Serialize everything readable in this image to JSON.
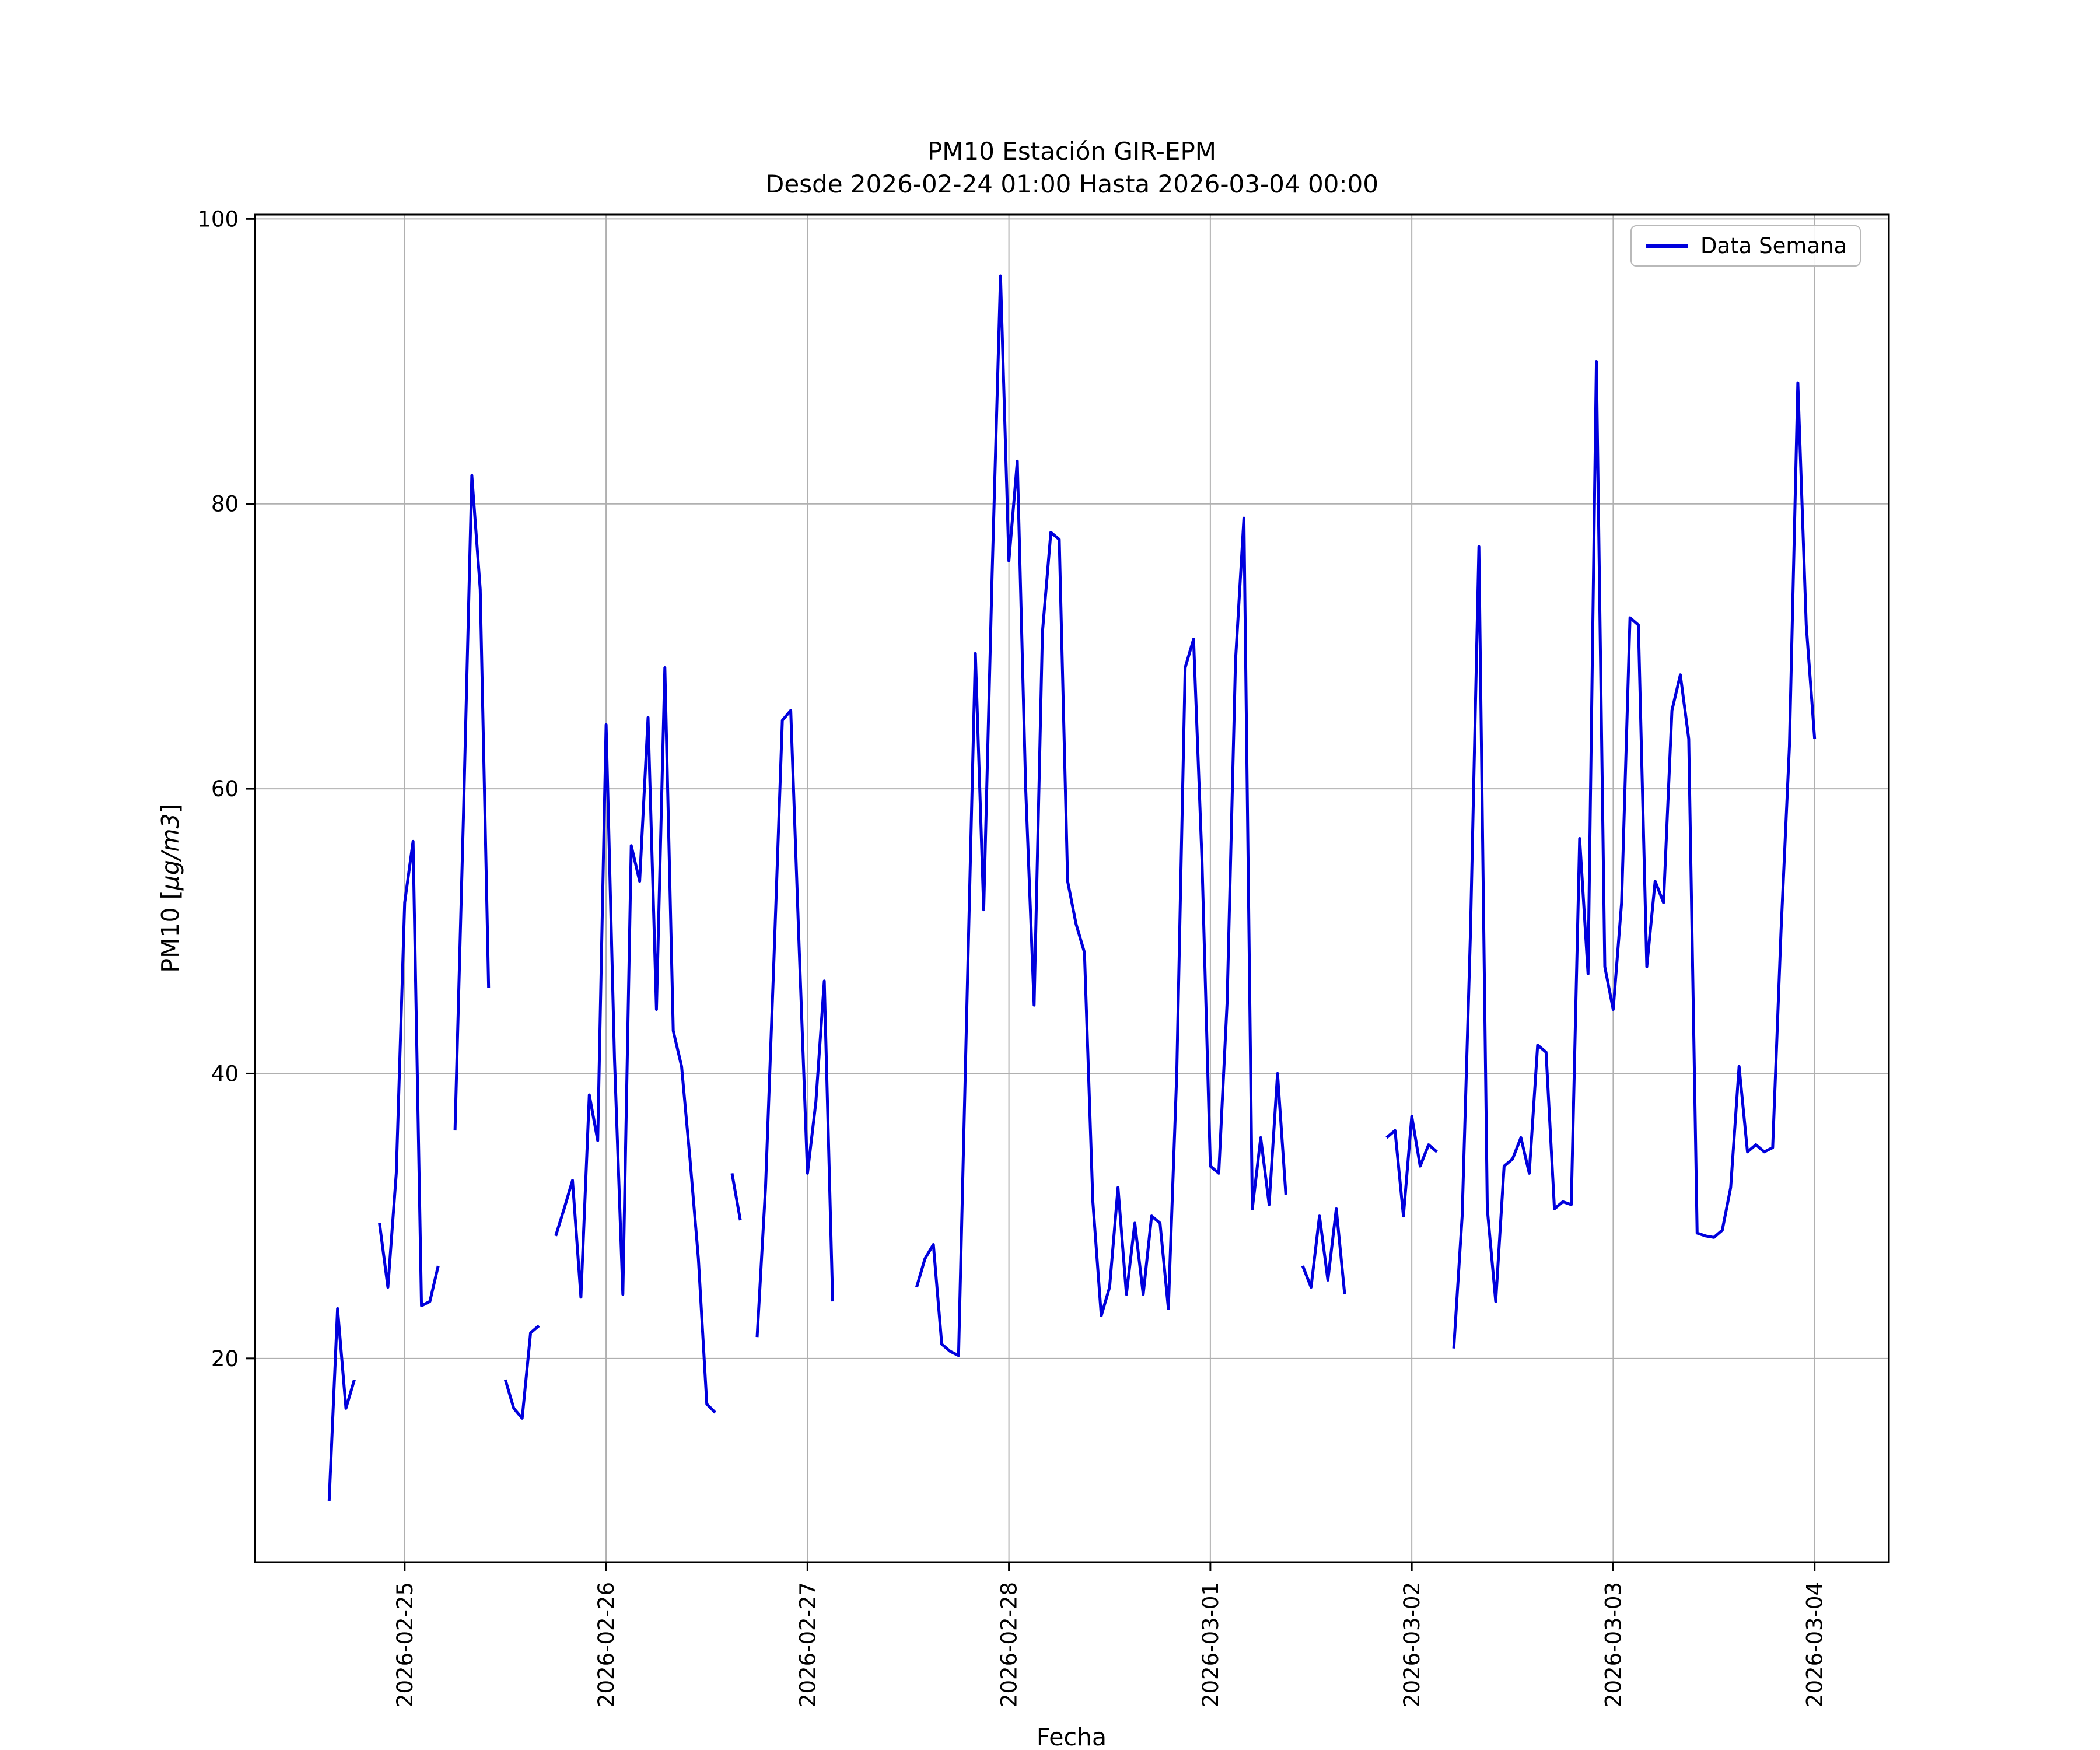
{
  "page": {
    "background_color": "#ffffff"
  },
  "chart_data": {
    "type": "line",
    "title_line1": "PM10 Estación GIR-EPM",
    "title_line2": "Desde 2026-02-24 01:00 Hasta 2026-03-04 00:00",
    "xlabel": "Fecha",
    "ylabel": "PM10 [μg/m3]",
    "ylabel_prefix": "PM10 [",
    "ylabel_math": "μg/m3",
    "ylabel_suffix": "]",
    "grid": true,
    "grid_color": "#b0b0b0",
    "axes_color": "#000000",
    "legend_position": "upper right",
    "x_unit": "hourly samples from 2026-02-24 01:00 to 2026-03-04 00:00",
    "xlim": [
      5.15,
      199.85
    ],
    "ylim": [
      5.7,
      100.3
    ],
    "yticks": [
      20,
      40,
      60,
      80,
      100
    ],
    "xticks": [
      {
        "pos": 23,
        "label": "2026-02-25"
      },
      {
        "pos": 47,
        "label": "2026-02-26"
      },
      {
        "pos": 71,
        "label": "2026-02-27"
      },
      {
        "pos": 95,
        "label": "2026-02-28"
      },
      {
        "pos": 119,
        "label": "2026-03-01"
      },
      {
        "pos": 143,
        "label": "2026-03-02"
      },
      {
        "pos": 167,
        "label": "2026-03-03"
      },
      {
        "pos": 191,
        "label": "2026-03-04"
      }
    ],
    "series": [
      {
        "name": "Data Semana",
        "color": "#0000dd",
        "line_width": 5,
        "values": [
          null,
          null,
          null,
          null,
          null,
          null,
          null,
          null,
          null,
          null,
          null,
          null,
          null,
          null,
          10,
          23.5,
          16.5,
          18.5,
          null,
          null,
          29.5,
          25,
          33,
          52,
          56.3,
          23.7,
          24,
          26.5,
          null,
          36,
          58,
          82,
          74,
          46,
          null,
          18.5,
          16.5,
          15.8,
          21.8,
          22.3,
          null,
          28.6,
          30.5,
          32.5,
          24.3,
          38.5,
          35.3,
          64.5,
          41,
          24.5,
          56,
          53.5,
          65,
          44.5,
          68.5,
          43,
          40.5,
          34,
          27,
          16.8,
          16.2,
          null,
          33,
          29.7,
          null,
          21.5,
          32,
          48,
          64.8,
          65.5,
          49,
          33,
          38,
          46.5,
          24,
          null,
          null,
          null,
          null,
          null,
          null,
          null,
          null,
          null,
          25,
          27,
          28,
          21,
          20.5,
          20.2,
          45,
          69.5,
          51.5,
          75,
          96,
          76,
          83,
          60,
          44.8,
          71,
          78,
          77.5,
          53.5,
          50.5,
          48.5,
          31,
          23,
          25,
          32,
          24.5,
          29.5,
          24.5,
          30,
          29.5,
          23.5,
          40,
          68.5,
          70.5,
          55,
          33.5,
          33,
          45,
          69,
          79,
          30.5,
          35.5,
          30.8,
          40,
          31.5,
          null,
          26.5,
          25,
          30,
          25.5,
          30.5,
          24.5,
          null,
          null,
          null,
          null,
          35.5,
          36,
          30,
          37,
          33.5,
          35,
          34.5,
          null,
          20.7,
          30,
          50,
          77,
          30.5,
          24,
          33.5,
          34,
          35.5,
          33,
          42,
          41.5,
          30.5,
          31,
          30.8,
          56.5,
          47,
          90,
          47.5,
          44.5,
          52,
          72,
          71.5,
          47.5,
          53.5,
          52,
          65.5,
          68,
          63.5,
          28.8,
          28.6,
          28.5,
          29,
          32,
          40.5,
          34.5,
          35,
          34.5,
          34.8,
          50,
          63,
          88.5,
          71.5,
          63.5
        ]
      }
    ]
  }
}
